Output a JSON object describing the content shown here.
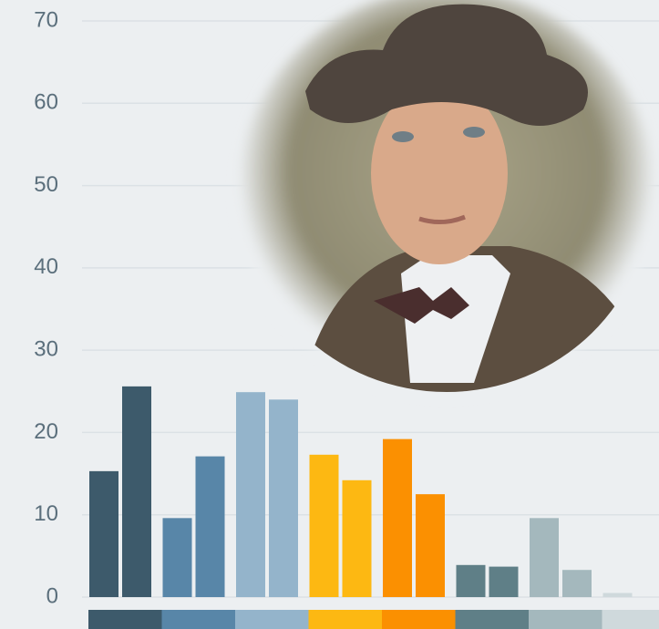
{
  "chart_data": {
    "type": "bar",
    "ylim": [
      0,
      70
    ],
    "yticks": [
      0,
      10,
      20,
      30,
      40,
      50,
      60,
      70
    ],
    "grid": true,
    "groups": [
      {
        "color": "#3d5a6b",
        "values": [
          15.3,
          25.6
        ]
      },
      {
        "color": "#5886a8",
        "values": [
          9.6,
          17.1
        ]
      },
      {
        "color": "#94b4cb",
        "values": [
          24.9,
          24.0
        ]
      },
      {
        "color": "#fdb812",
        "values": [
          17.3,
          14.2
        ]
      },
      {
        "color": "#fb9001",
        "values": [
          19.2,
          12.5
        ]
      },
      {
        "color": "#5f7f87",
        "values": [
          3.9,
          3.7
        ]
      },
      {
        "color": "#a4b8bd",
        "values": [
          9.6,
          3.3
        ]
      },
      {
        "color": "#cfd9dc",
        "values": [
          0.5,
          0
        ]
      }
    ]
  }
}
